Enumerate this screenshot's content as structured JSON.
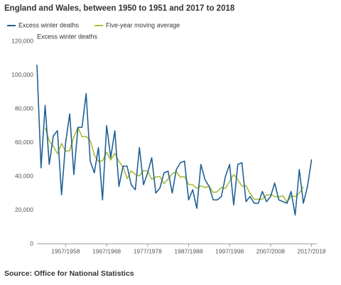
{
  "chart_data": {
    "type": "line",
    "title": "England and Wales, between 1950 to 1951 and 2017 to 2018",
    "y_label": "Excess winter deaths",
    "source": "Source: Office for National Statistics",
    "categories": [
      null,
      null,
      null,
      null,
      null,
      null,
      null,
      "1957/1958",
      null,
      null,
      null,
      null,
      null,
      null,
      null,
      null,
      null,
      "1967/1968",
      null,
      null,
      null,
      null,
      null,
      null,
      null,
      null,
      null,
      "1977/1978",
      null,
      null,
      null,
      null,
      null,
      null,
      null,
      null,
      null,
      "1987/1988",
      null,
      null,
      null,
      null,
      null,
      null,
      null,
      null,
      null,
      "1997/1998",
      null,
      null,
      null,
      null,
      null,
      null,
      null,
      null,
      null,
      "2007/2008",
      null,
      null,
      null,
      null,
      null,
      null,
      null,
      null,
      null,
      "2017/2018"
    ],
    "series": [
      {
        "name": "Excess winter deaths",
        "color": "#206095",
        "values": [
          106000,
          45000,
          82000,
          47000,
          64000,
          67000,
          29000,
          60000,
          77000,
          41000,
          69000,
          69000,
          89000,
          49000,
          42000,
          57000,
          26000,
          70000,
          51000,
          67000,
          34000,
          46000,
          46000,
          35000,
          32000,
          57000,
          35000,
          42000,
          51000,
          30000,
          33000,
          42000,
          43000,
          30000,
          44000,
          48000,
          49000,
          26000,
          32000,
          21000,
          47000,
          38000,
          34000,
          26000,
          26000,
          28000,
          40000,
          47000,
          23000,
          47000,
          48000,
          25000,
          28000,
          24000,
          24000,
          31000,
          25000,
          28000,
          36000,
          26000,
          25000,
          24000,
          31000,
          17000,
          44000,
          24000,
          34000,
          50000
        ]
      },
      {
        "name": "Five-year moving average",
        "color": "#a8bd3a",
        "values": [
          null,
          null,
          68800,
          61000,
          57800,
          53400,
          59400,
          54800,
          55200,
          63200,
          69000,
          63400,
          63600,
          61200,
          52600,
          48800,
          49200,
          54200,
          49600,
          53600,
          48800,
          45600,
          38600,
          43200,
          41000,
          40200,
          43400,
          43000,
          38200,
          39600,
          39800,
          35600,
          38400,
          41400,
          42800,
          39400,
          39800,
          35200,
          35000,
          32800,
          34400,
          33200,
          34200,
          30400,
          30800,
          33400,
          32800,
          37000,
          41000,
          38000,
          34200,
          34400,
          29800,
          26400,
          26400,
          26400,
          28800,
          29200,
          28000,
          27800,
          28400,
          24600,
          28200,
          28000,
          30000,
          33800,
          null,
          null
        ]
      }
    ],
    "ylim": [
      0,
      120000
    ],
    "yticks": [
      0,
      {
        "value": 20000,
        "label": "20,000"
      },
      {
        "value": 40000,
        "label": "40,000"
      },
      {
        "value": 60000,
        "label": "60,000"
      },
      {
        "value": 80000,
        "label": "80,000"
      },
      {
        "value": 100000,
        "label": "100,000"
      },
      {
        "value": 120000,
        "label": "120,000"
      }
    ],
    "grid": false
  }
}
